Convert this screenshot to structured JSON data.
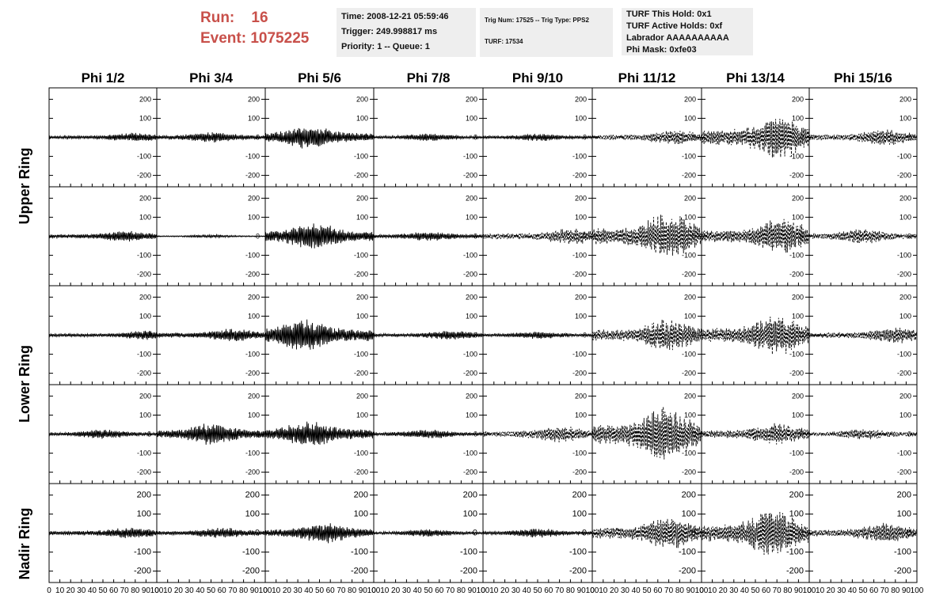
{
  "header": {
    "run_label": "Run:",
    "run_value": "16",
    "event_label": "Event:",
    "event_value": "1075225",
    "box1": [
      "Time: 2008-12-21 05:59:46",
      "Trigger: 249.998817 ms",
      "Priority: 1 -- Queue: 1"
    ],
    "box2": [
      "Trig Num: 17525 -- Trig Type: PPS2",
      "TURF: 17534"
    ],
    "box3": [
      "TURF This Hold: 0x1",
      "TURF Active Holds: 0xf",
      "Labrador AAAAAAAAAA",
      "Phi Mask: 0xfe03"
    ]
  },
  "colors": {
    "header_red": "#c8504a",
    "box_bg": "#eeeeee",
    "trace": "#000000"
  },
  "chart_data": {
    "type": "line",
    "columns": [
      "Phi 1/2",
      "Phi 3/4",
      "Phi 5/6",
      "Phi 7/8",
      "Phi 9/10",
      "Phi 11/12",
      "Phi 13/14",
      "Phi 15/16"
    ],
    "ring_labels": [
      "Upper Ring",
      "Lower Ring",
      "Nadir Ring"
    ],
    "rows": 5,
    "xlim": [
      0,
      100
    ],
    "ylim": [
      -260,
      260
    ],
    "yticks": [
      -200,
      -100,
      0,
      100,
      200
    ],
    "xtick_labels": [
      "0",
      "10",
      "20",
      "30",
      "40",
      "50",
      "60",
      "70",
      "80",
      "90",
      "100"
    ],
    "series_style": [
      [
        "solid",
        "solid",
        "solid",
        "solid",
        "solid",
        "dashed",
        "dashed",
        "dashed"
      ],
      [
        "solid",
        "solid",
        "solid",
        "solid",
        "dashed",
        "dashed",
        "dashed",
        "dashed"
      ],
      [
        "solid",
        "solid",
        "solid",
        "solid",
        "solid",
        "dashed",
        "dashed",
        "dashed"
      ],
      [
        "solid",
        "solid",
        "solid",
        "solid",
        "dashed",
        "dashed",
        "dashed",
        "dashed"
      ],
      [
        "solid",
        "solid",
        "solid",
        "solid",
        "solid",
        "dashed",
        "dashed",
        "dashed"
      ]
    ],
    "amplitude": [
      [
        25,
        30,
        65,
        20,
        20,
        40,
        120,
        45
      ],
      [
        30,
        8,
        75,
        25,
        45,
        130,
        100,
        40
      ],
      [
        25,
        35,
        90,
        25,
        20,
        90,
        110,
        45
      ],
      [
        25,
        60,
        70,
        25,
        45,
        150,
        60,
        30
      ],
      [
        30,
        30,
        55,
        20,
        25,
        90,
        130,
        55
      ]
    ],
    "burst_center": [
      [
        80,
        50,
        40,
        50,
        50,
        75,
        72,
        70
      ],
      [
        70,
        50,
        45,
        50,
        80,
        70,
        75,
        50
      ],
      [
        90,
        70,
        35,
        70,
        50,
        70,
        70,
        80
      ],
      [
        50,
        50,
        40,
        50,
        70,
        65,
        70,
        50
      ],
      [
        75,
        60,
        55,
        50,
        50,
        70,
        65,
        70
      ]
    ]
  }
}
